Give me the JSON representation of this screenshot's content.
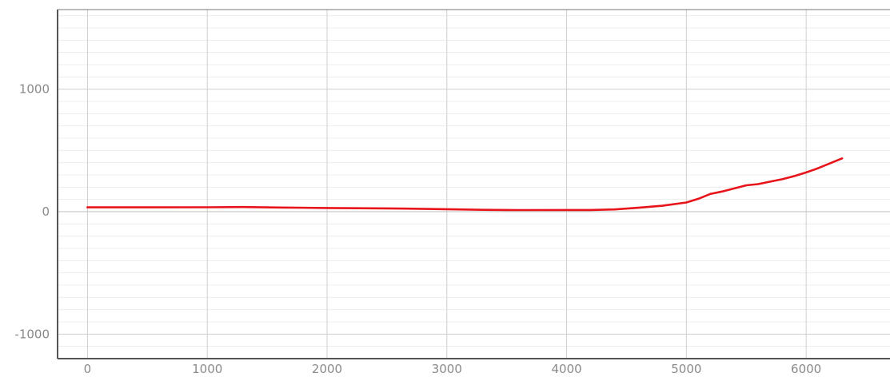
{
  "chart_data": {
    "type": "line",
    "title": "",
    "xlabel": "",
    "ylabel": "",
    "xlim": [
      -250,
      6700
    ],
    "ylim": [
      -1200,
      1650
    ],
    "x_ticks": [
      0,
      1000,
      2000,
      3000,
      4000,
      5000,
      6000
    ],
    "x_tick_labels": [
      "0",
      "1000",
      "2000",
      "3000",
      "4000",
      "5000",
      "6000"
    ],
    "y_ticks": [
      -1000,
      0,
      1000
    ],
    "y_tick_labels": [
      "-1000",
      "0",
      "1000"
    ],
    "minor_y_step": 100,
    "grid": true,
    "legend": "none",
    "colors": {
      "line": "#e8141b",
      "grid_major": "#cfcfcf",
      "grid_minor": "#ececec",
      "axis": "#555555",
      "tick_text": "#8a8a8a"
    },
    "series": [
      {
        "x": [
          0,
          500,
          1000,
          1300,
          1600,
          2000,
          2500,
          3000,
          3300,
          3600,
          4000,
          4200,
          4400,
          4600,
          4800,
          5000,
          5100,
          5200,
          5300,
          5400,
          5500,
          5600,
          5700,
          5800,
          5900,
          6000,
          6100,
          6200,
          6300
        ],
        "y": [
          35,
          35,
          36,
          38,
          34,
          30,
          27,
          20,
          15,
          13,
          14,
          14,
          18,
          32,
          48,
          75,
          105,
          145,
          165,
          190,
          215,
          225,
          245,
          265,
          290,
          320,
          355,
          395,
          435
        ]
      }
    ]
  }
}
